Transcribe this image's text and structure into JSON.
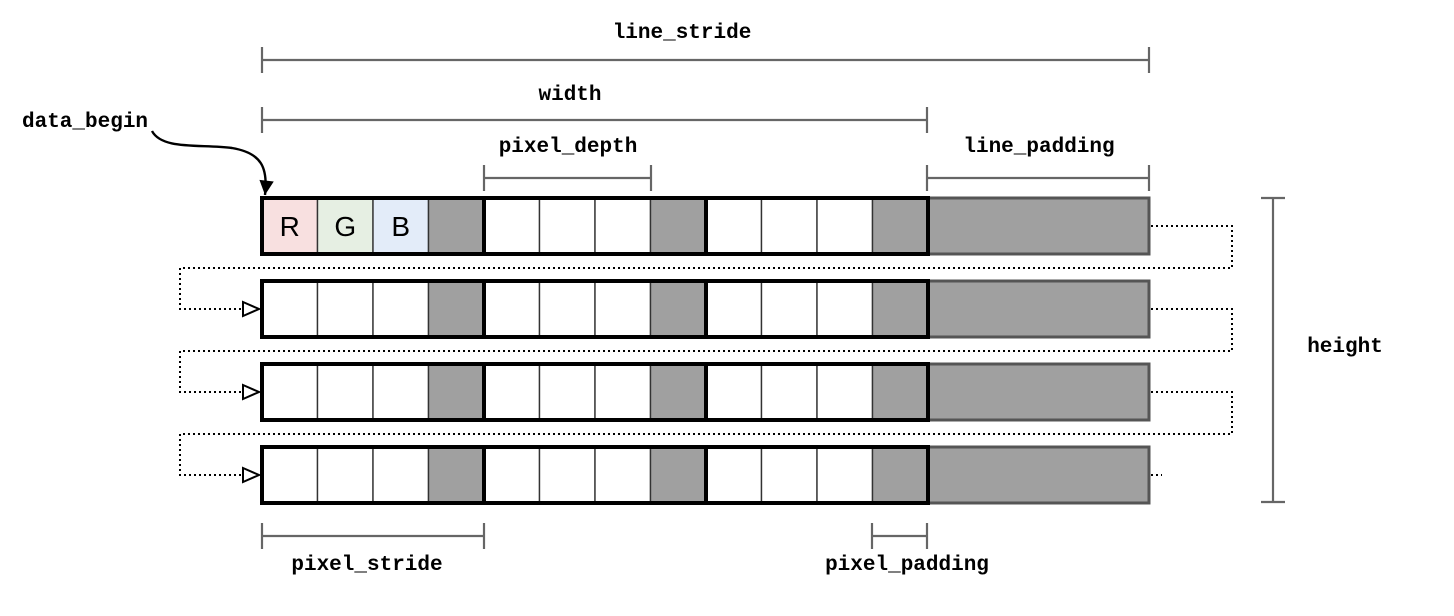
{
  "labels": {
    "line_stride": "line_stride",
    "width": "width",
    "data_begin": "data_begin",
    "pixel_depth": "pixel_depth",
    "line_padding": "line_padding",
    "height": "height",
    "pixel_stride": "pixel_stride",
    "pixel_padding": "pixel_padding"
  },
  "channels": [
    {
      "letter": "R",
      "color": "#f8e0e0"
    },
    {
      "letter": "G",
      "color": "#e6efe3"
    },
    {
      "letter": "B",
      "color": "#e3ecf9"
    }
  ],
  "colors": {
    "padding": "#a0a0a0",
    "border": "#000000",
    "dimension": "#666666"
  },
  "structure": {
    "rows": 4,
    "pixels_per_row": 3,
    "channels_per_pixel": 3
  }
}
